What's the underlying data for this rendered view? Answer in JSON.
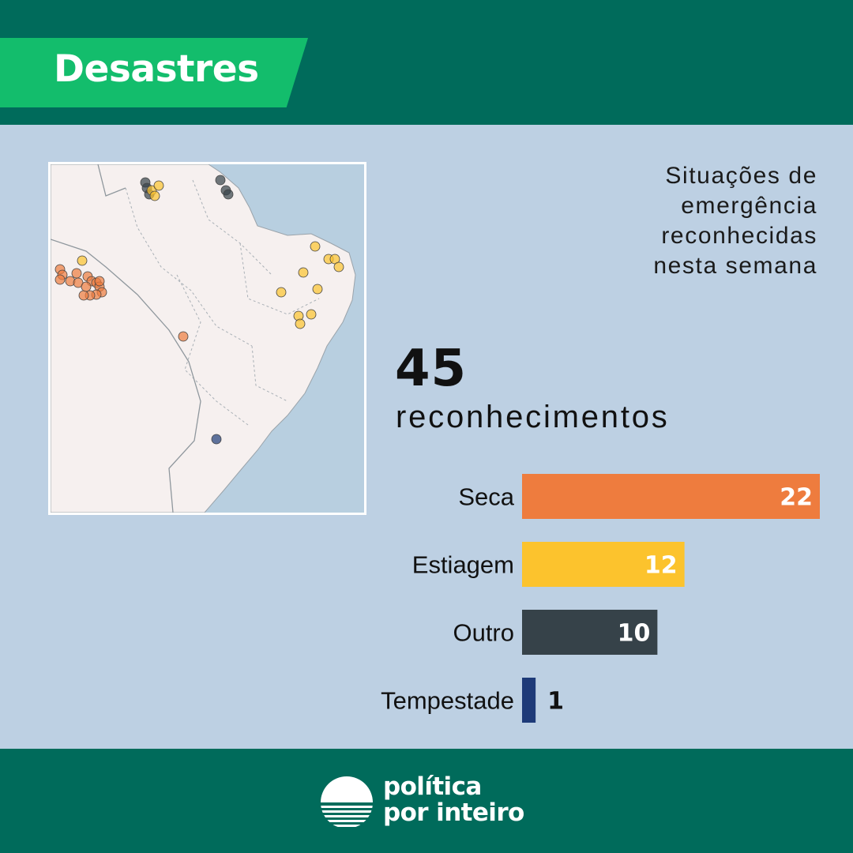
{
  "header": {
    "section_title": "Desastres"
  },
  "subtitle_lines": [
    "Situações de",
    "emergência",
    "reconhecidas",
    "nesta semana"
  ],
  "summary": {
    "total": "45",
    "total_label": "reconhecimentos"
  },
  "colors": {
    "header_band": "#006b5b",
    "tag": "#13bd6c",
    "background": "#bdd0e3",
    "seca": "#ee7c3e",
    "estiagem": "#fcc32d",
    "outro": "#364249",
    "tempestade": "#1e3a78"
  },
  "chart_data": {
    "type": "bar",
    "orientation": "horizontal",
    "categories": [
      "Seca",
      "Estiagem",
      "Outro",
      "Tempestade"
    ],
    "values": [
      22,
      12,
      10,
      1
    ],
    "colors": [
      "#ee7c3e",
      "#fcc32d",
      "#364249",
      "#1e3a78"
    ],
    "xlim": [
      0,
      22
    ],
    "grid": false,
    "legend": false,
    "value_labels": true
  },
  "map": {
    "region": "Brasil",
    "legend_colors": {
      "Seca": "#ee7c3e",
      "Estiagem": "#fcc32d",
      "Outro": "#364249",
      "Tempestade": "#1e3a78"
    }
  },
  "footer": {
    "logo_line1": "política",
    "logo_line2": "por inteiro",
    "logo_icon": "sun-horizon-icon"
  }
}
